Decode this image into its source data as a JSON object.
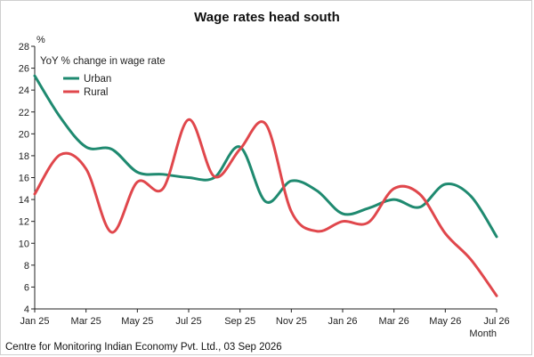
{
  "chart_data": {
    "type": "line",
    "title": "Wage rates head south",
    "y_unit": "%",
    "xlabel": "Month",
    "legend_title": "YoY % change in wage rate",
    "legend_position": "top-left",
    "grid": false,
    "ylim": [
      4,
      28
    ],
    "y_ticks": [
      4,
      6,
      8,
      10,
      12,
      14,
      16,
      18,
      20,
      22,
      24,
      26,
      28
    ],
    "x_tick_labels": [
      "Jan 25",
      "Mar 25",
      "May 25",
      "Jul 25",
      "Sep 25",
      "Nov 25",
      "Jan 26",
      "Mar 26",
      "May 26",
      "Jul 26"
    ],
    "x": [
      "Jan 25",
      "Feb 25",
      "Mar 25",
      "Apr 25",
      "May 25",
      "Jun 25",
      "Jul 25",
      "Aug 25",
      "Sep 25",
      "Oct 25",
      "Nov 25",
      "Dec 25",
      "Jan 26",
      "Feb 26",
      "Mar 26",
      "Apr 26",
      "May 26",
      "Jun 26",
      "Jul 26"
    ],
    "series": [
      {
        "name": "Urban",
        "color": "#1f8a70",
        "values": [
          25.3,
          21.5,
          18.8,
          18.6,
          16.5,
          16.3,
          16.0,
          16.0,
          18.8,
          13.8,
          15.7,
          14.8,
          12.7,
          13.2,
          14.0,
          13.3,
          15.4,
          14.3,
          10.6
        ]
      },
      {
        "name": "Rural",
        "color": "#e0474c",
        "values": [
          14.5,
          18.1,
          16.8,
          11.0,
          15.6,
          15.0,
          21.3,
          16.1,
          18.6,
          20.9,
          12.9,
          11.1,
          12.0,
          11.9,
          15.0,
          14.5,
          10.9,
          8.5,
          5.2
        ]
      }
    ],
    "source": "Centre for Monitoring Indian Economy Pvt. Ltd., 03 Sep 2026"
  }
}
